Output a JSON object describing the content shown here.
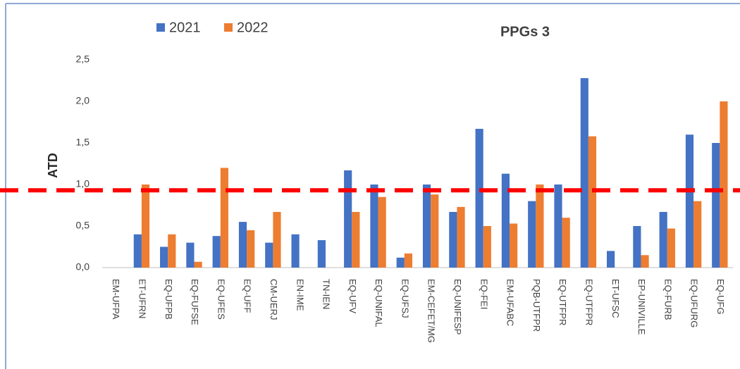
{
  "chart_data": {
    "type": "bar",
    "title": "PPGs 3",
    "y_label": "ATD",
    "categories": [
      "EM-UFPA",
      "ET-UFRN",
      "EQ-UFPB",
      "EQ-FUFSE",
      "EQ-UFES",
      "EQ-UFF",
      "CM-UERJ",
      "EN-IME",
      "TN-IEN",
      "EQ-UFV",
      "EQ-UNIFAL",
      "EQ-UFSJ",
      "EM-CEFET/MG",
      "EQ-UNIFESP",
      "EQ-FEI",
      "EM-UFABC",
      "PQB-UTFPR",
      "EQ-UTFPR",
      "EQ-UTFPR",
      "ET-UFSC",
      "EP-UNIVILLE",
      "EQ-FURB",
      "EQ-UFURG",
      "EQ-UFG"
    ],
    "series": [
      {
        "name": "2021",
        "color": "#4472c4",
        "values": [
          0,
          0.4,
          0.25,
          0.3,
          0.38,
          0.55,
          0.3,
          0.4,
          0.33,
          1.17,
          1.0,
          0.12,
          1.0,
          0.67,
          1.67,
          1.13,
          0.8,
          1.0,
          2.28,
          0.2,
          0.5,
          0.67,
          1.6,
          1.5
        ]
      },
      {
        "name": "2022",
        "color": "#ed7d31",
        "values": [
          0,
          1.0,
          0.4,
          0.07,
          1.2,
          0.45,
          0.67,
          0,
          0,
          0.67,
          0.85,
          0.17,
          0.88,
          0.73,
          0.5,
          0.53,
          1.0,
          0.6,
          1.58,
          0,
          0.15,
          0.47,
          0.8,
          2.0
        ]
      }
    ],
    "ylim": [
      0,
      2.5
    ],
    "yticks": [
      {
        "value": 0,
        "label": "0,0"
      },
      {
        "value": 0.5,
        "label": "0,5"
      },
      {
        "value": 1,
        "label": "1,0"
      },
      {
        "value": 1.5,
        "label": "1,5"
      },
      {
        "value": 2,
        "label": "2,0"
      },
      {
        "value": 2.5,
        "label": "2,5"
      }
    ],
    "grid": false,
    "reference_line": {
      "value": 0.93,
      "color": "#ff0000"
    }
  }
}
